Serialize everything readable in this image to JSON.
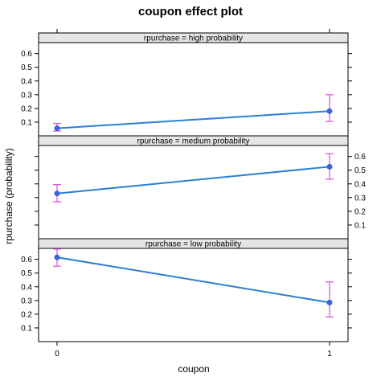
{
  "chart_data": {
    "type": "line",
    "title": "coupon effect plot",
    "xlabel": "coupon",
    "ylabel": "rpurchase (probability)",
    "x_categories": [
      "0",
      "1"
    ],
    "panels": [
      {
        "strip_label": "rpurchase = high probability",
        "y_ticks": [
          0.1,
          0.2,
          0.3,
          0.4,
          0.5,
          0.6
        ],
        "y_tick_labels": [
          "0.1",
          "0.2",
          "0.3",
          "0.4",
          "0.5",
          "0.6"
        ],
        "ylim": [
          0.0,
          0.68
        ],
        "y_axis_side": "left",
        "estimates": [
          0.055,
          0.18
        ],
        "lower": [
          0.035,
          0.105
        ],
        "upper": [
          0.09,
          0.3
        ]
      },
      {
        "strip_label": "rpurchase = medium probability",
        "y_ticks": [
          0.1,
          0.2,
          0.3,
          0.4,
          0.5,
          0.6
        ],
        "y_tick_labels": [
          "0.1",
          "0.2",
          "0.3",
          "0.4",
          "0.5",
          "0.6"
        ],
        "ylim": [
          0.0,
          0.68
        ],
        "y_axis_side": "right",
        "estimates": [
          0.33,
          0.525
        ],
        "lower": [
          0.27,
          0.435
        ],
        "upper": [
          0.395,
          0.62
        ]
      },
      {
        "strip_label": "rpurchase = low probability",
        "y_ticks": [
          0.1,
          0.2,
          0.3,
          0.4,
          0.5,
          0.6
        ],
        "y_tick_labels": [
          "0.1",
          "0.2",
          "0.3",
          "0.4",
          "0.5",
          "0.6"
        ],
        "ylim": [
          0.0,
          0.68
        ],
        "y_axis_side": "left",
        "estimates": [
          0.615,
          0.285
        ],
        "lower": [
          0.55,
          0.18
        ],
        "upper": [
          0.675,
          0.435
        ]
      }
    ],
    "colors": {
      "line": "#2a7fd4",
      "point": "#3b62e0",
      "error_bar": "#d94fd9",
      "strip": "#e6e6e6"
    }
  }
}
